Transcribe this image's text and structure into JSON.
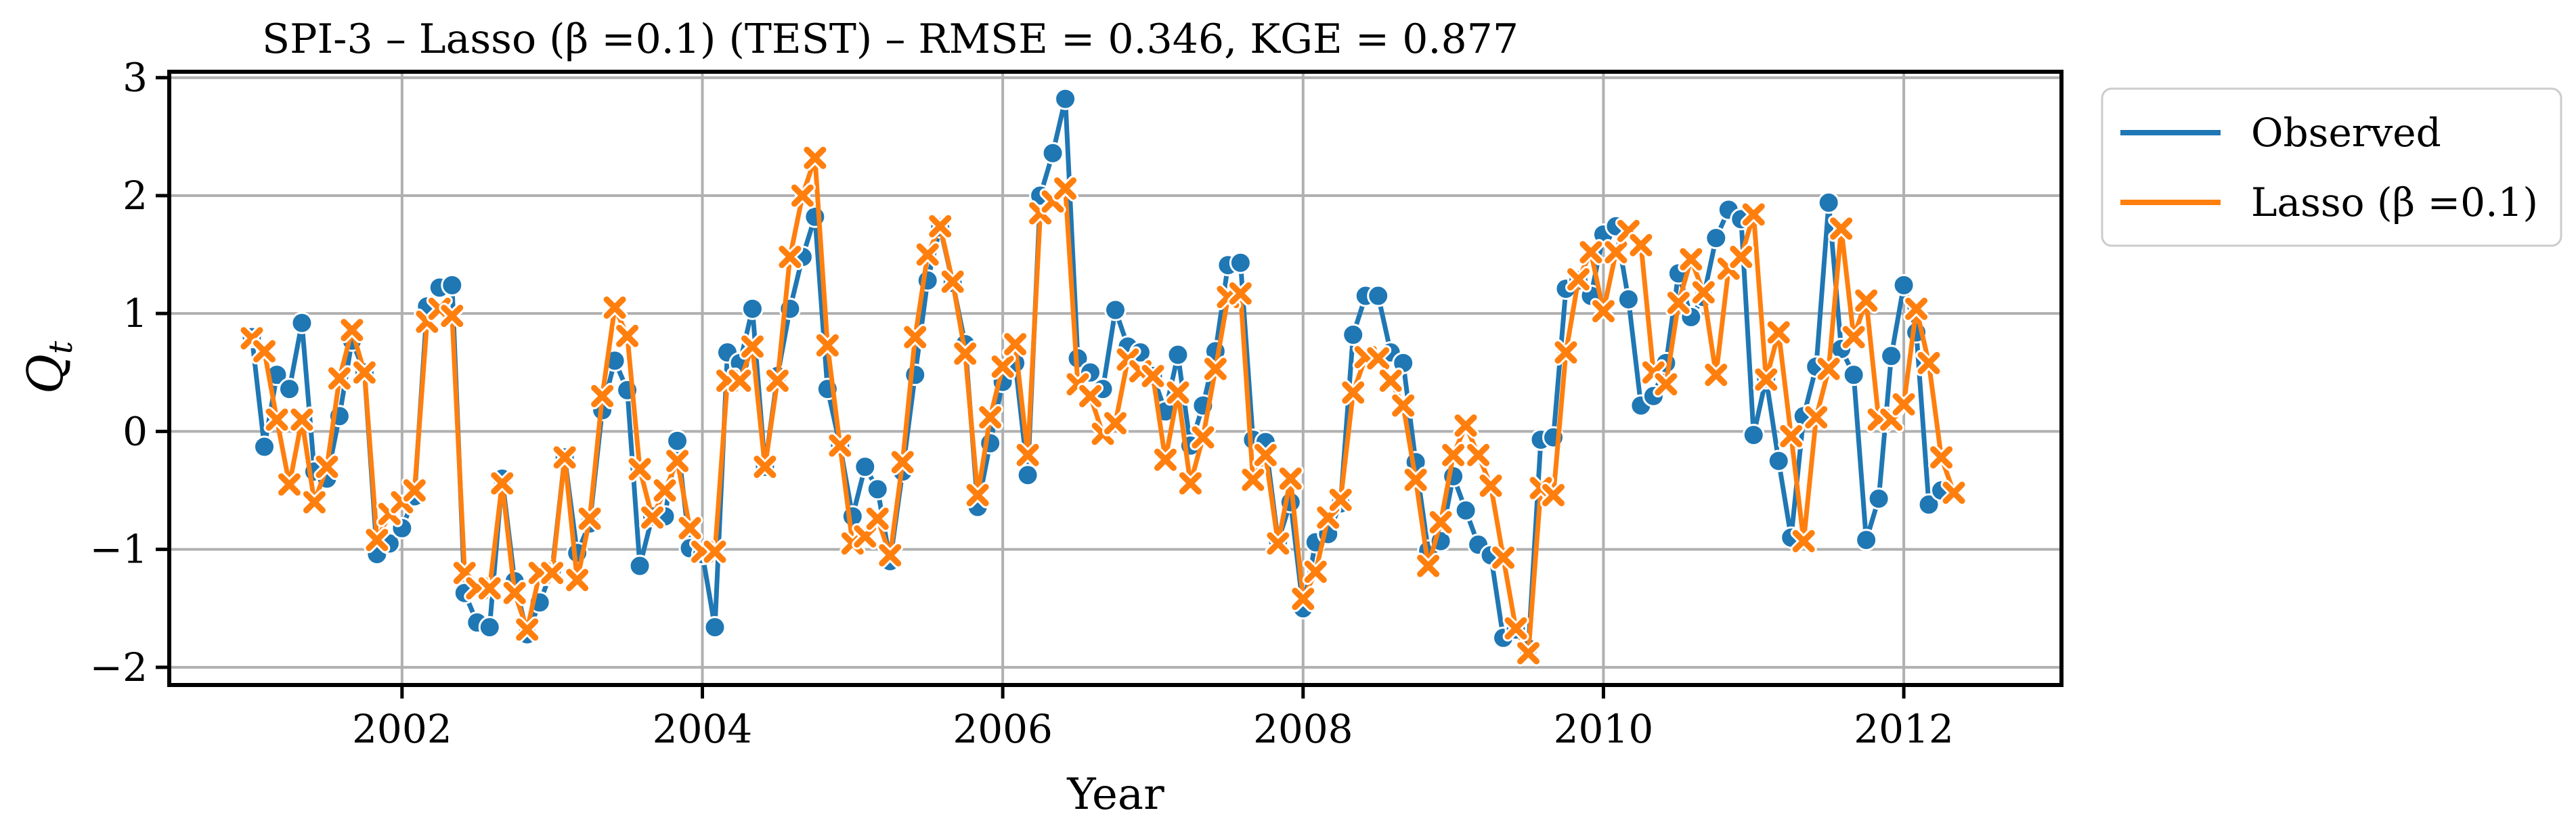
{
  "chart_data": {
    "type": "line",
    "title": "SPI-3 – Lasso (β =0.1) (TEST) – RMSE = 0.346, KGE = 0.877",
    "xlabel": "Year",
    "ylabel": "Q",
    "ylabel_subscript": "t",
    "xlim": [
      2000.45,
      2013.05
    ],
    "ylim": [
      -2.15,
      3.05
    ],
    "xticks": [
      2002,
      2004,
      2006,
      2008,
      2010,
      2012
    ],
    "xtick_labels": [
      "2002",
      "2004",
      "2006",
      "2008",
      "2010",
      "2012"
    ],
    "yticks": [
      -2,
      -1,
      0,
      1,
      2,
      3
    ],
    "ytick_labels": [
      "−2",
      "−1",
      "0",
      "1",
      "2",
      "3"
    ],
    "grid": true,
    "legend_placement": "outside upper right",
    "x_start": "2001-01",
    "x_step": "1 month",
    "series": [
      {
        "name": "Observed",
        "color": "#1f77b4",
        "marker": "circle",
        "values": [
          0.8,
          -0.13,
          0.48,
          0.36,
          0.92,
          -0.34,
          -0.4,
          0.13,
          0.77,
          0.5,
          -1.04,
          -0.95,
          -0.82,
          -0.55,
          1.06,
          1.22,
          1.24,
          -1.37,
          -1.62,
          -1.66,
          -0.4,
          -1.27,
          -1.72,
          -1.45,
          -1.17,
          -0.22,
          -1.03,
          -0.78,
          0.18,
          0.6,
          0.35,
          -1.14,
          -0.72,
          -0.72,
          -0.08,
          -0.99,
          -1.04,
          -1.66,
          0.67,
          0.58,
          1.04,
          -0.3,
          0.47,
          1.04,
          1.48,
          1.82,
          0.36,
          -0.12,
          -0.72,
          -0.3,
          -0.49,
          -1.1,
          -0.34,
          0.48,
          1.28,
          1.73,
          1.26,
          0.74,
          -0.64,
          -0.1,
          0.42,
          0.58,
          -0.37,
          2.0,
          2.36,
          2.82,
          0.62,
          0.5,
          0.36,
          1.03,
          0.72,
          0.67,
          0.47,
          0.17,
          0.65,
          -0.12,
          0.22,
          0.68,
          1.41,
          1.43,
          -0.07,
          -0.09,
          -0.93,
          -0.6,
          -1.5,
          -0.94,
          -0.87,
          -0.61,
          0.82,
          1.15,
          1.15,
          0.67,
          0.58,
          -0.26,
          -1.01,
          -0.93,
          -0.38,
          -0.67,
          -0.96,
          -1.05,
          -1.75,
          -1.68,
          -1.84,
          -0.07,
          -0.05,
          1.21,
          1.28,
          1.15,
          1.67,
          1.74,
          1.12,
          0.22,
          0.3,
          0.58,
          1.34,
          0.97,
          1.14,
          1.64,
          1.88,
          1.8,
          -0.03,
          0.45,
          -0.25,
          -0.9,
          0.13,
          0.55,
          1.94,
          0.7,
          0.48,
          -0.92,
          -0.57,
          0.64,
          1.24,
          0.84,
          -0.62,
          -0.5
        ]
      },
      {
        "name": "Lasso (β =0.1)",
        "color": "#ff7f0e",
        "marker": "x",
        "values": [
          0.79,
          0.68,
          0.1,
          -0.45,
          0.1,
          -0.6,
          -0.3,
          0.45,
          0.86,
          0.5,
          -0.92,
          -0.7,
          -0.6,
          -0.5,
          0.93,
          1.04,
          0.98,
          -1.2,
          -1.33,
          -1.33,
          -0.44,
          -1.37,
          -1.68,
          -1.2,
          -1.2,
          -0.22,
          -1.26,
          -0.74,
          0.3,
          1.05,
          0.81,
          -0.32,
          -0.73,
          -0.5,
          -0.25,
          -0.82,
          -1.02,
          -1.02,
          0.43,
          0.43,
          0.72,
          -0.3,
          0.43,
          1.48,
          2.0,
          2.32,
          0.73,
          -0.12,
          -0.95,
          -0.89,
          -0.74,
          -1.05,
          -0.26,
          0.8,
          1.5,
          1.74,
          1.27,
          0.66,
          -0.54,
          0.12,
          0.55,
          0.74,
          -0.2,
          1.85,
          1.95,
          2.06,
          0.4,
          0.3,
          -0.02,
          0.07,
          0.61,
          0.51,
          0.47,
          -0.24,
          0.33,
          -0.44,
          -0.05,
          0.53,
          1.14,
          1.17,
          -0.41,
          -0.2,
          -0.95,
          -0.4,
          -1.42,
          -1.19,
          -0.73,
          -0.58,
          0.33,
          0.63,
          0.62,
          0.43,
          0.22,
          -0.41,
          -1.14,
          -0.77,
          -0.2,
          0.05,
          -0.2,
          -0.46,
          -1.07,
          -1.67,
          -1.88,
          -0.48,
          -0.54,
          0.67,
          1.29,
          1.52,
          1.02,
          1.52,
          1.7,
          1.58,
          0.5,
          0.4,
          1.09,
          1.46,
          1.18,
          0.48,
          1.38,
          1.48,
          1.84,
          0.44,
          0.84,
          -0.04,
          -0.93,
          0.12,
          0.53,
          1.72,
          0.8,
          1.11,
          0.1,
          0.1,
          0.23,
          1.04,
          0.58,
          -0.22,
          -0.52
        ]
      }
    ]
  }
}
